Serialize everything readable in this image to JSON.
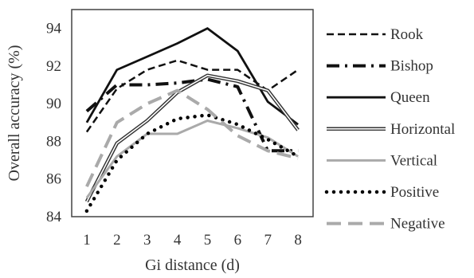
{
  "chart_data": {
    "type": "line",
    "xlabel": "Gi distance (d)",
    "ylabel": "Overall accuracy (%)",
    "x": [
      1,
      2,
      3,
      4,
      5,
      6,
      7,
      8
    ],
    "ylim": [
      84,
      95
    ],
    "yticks": [
      84,
      86,
      88,
      90,
      92,
      94
    ],
    "grid": false,
    "legend_position": "right",
    "series": [
      {
        "name": "Rook",
        "style": "dashed",
        "color": "#111111",
        "values": [
          88.5,
          90.8,
          91.8,
          92.3,
          91.8,
          91.8,
          90.7,
          91.8
        ]
      },
      {
        "name": "Bishop",
        "style": "dash-dot",
        "color": "#111111",
        "values": [
          89.6,
          91.0,
          91.0,
          91.1,
          91.3,
          90.9,
          87.5,
          87.5
        ]
      },
      {
        "name": "Queen",
        "style": "solid",
        "color": "#111111",
        "values": [
          89.0,
          91.8,
          92.5,
          93.2,
          94.0,
          92.8,
          90.1,
          88.9
        ]
      },
      {
        "name": "Horizontal",
        "style": "double-line",
        "color": "#333333",
        "values": [
          84.8,
          87.9,
          89.1,
          90.6,
          91.5,
          91.2,
          90.7,
          88.6
        ]
      },
      {
        "name": "Vertical",
        "style": "solid",
        "color": "#aaaaaa",
        "values": [
          85.0,
          87.2,
          88.4,
          88.4,
          89.1,
          88.7,
          88.2,
          87.2
        ]
      },
      {
        "name": "Positive",
        "style": "dotted",
        "color": "#000000",
        "values": [
          84.3,
          87.0,
          88.4,
          89.2,
          89.4,
          88.9,
          88.1,
          87.2
        ]
      },
      {
        "name": "Negative",
        "style": "dashed-long",
        "color": "#aaaaaa",
        "values": [
          85.6,
          89.0,
          90.0,
          90.7,
          89.7,
          88.3,
          87.5,
          87.1
        ]
      }
    ]
  }
}
